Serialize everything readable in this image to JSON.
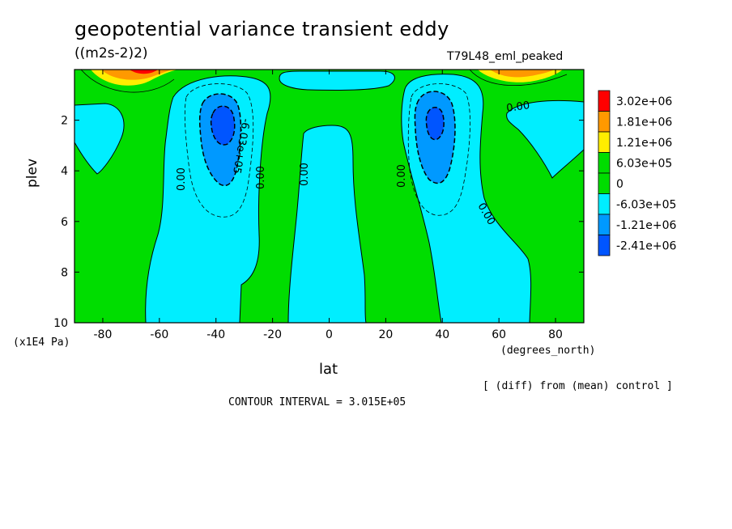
{
  "chart_data": {
    "type": "contour",
    "title": "geopotential variance transient eddy",
    "units": "((m2s-2)2)",
    "run_label": "T79L48_eml_peaked",
    "xlabel": "lat",
    "x_units": "(degrees_north)",
    "ylabel": "plev",
    "y_units": "(x1E4 Pa)",
    "xlim": [
      -90,
      90
    ],
    "ylim": [
      0,
      10
    ],
    "y_inverted": true,
    "x_ticks": [
      -80,
      -60,
      -40,
      -20,
      0,
      20,
      40,
      60,
      80
    ],
    "y_ticks": [
      2,
      4,
      6,
      8,
      10
    ],
    "note": "[ (diff) from (mean) control ]",
    "contour_interval": "CONTOUR INTERVAL = 3.015E+05",
    "contour_labels": [
      "0.00",
      "-6.03e+05"
    ],
    "legend": {
      "labels": [
        "3.02e+06",
        "1.81e+06",
        "1.21e+06",
        "6.03e+05",
        "0",
        "-6.03e+05",
        "-1.21e+06",
        "-2.41e+06"
      ],
      "colors": [
        "#ff0000",
        "#ff9900",
        "#ffee00",
        "#00dd00",
        "#00dd00",
        "#00eeff",
        "#0099ff",
        "#0055ff"
      ]
    },
    "fill_levels": {
      "positive": "#00dd00",
      "negative_1": "#00eeff",
      "negative_2": "#0099ff",
      "negative_3": "#0055ff",
      "top_pos_1": "#ffee00",
      "top_pos_2": "#ff9900",
      "top_pos_3": "#ff0000"
    },
    "features": [
      {
        "kind": "min",
        "lat": -37,
        "plev": 2.4,
        "value": "< -1.21e+06"
      },
      {
        "kind": "min",
        "lat": 37,
        "plev": 2.4,
        "value": "< -1.21e+06"
      }
    ]
  }
}
